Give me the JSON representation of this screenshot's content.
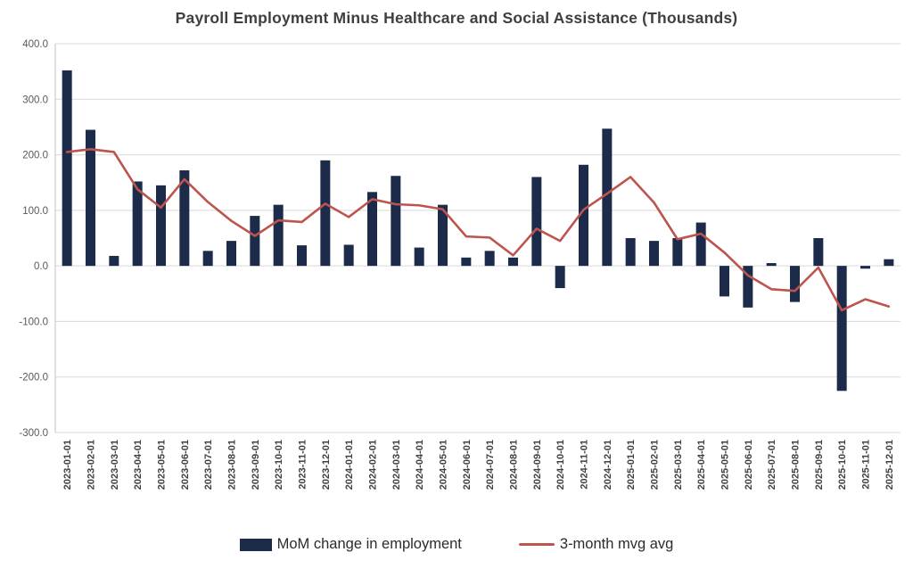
{
  "title": "Payroll Employment Minus Healthcare and Social Assistance (Thousands)",
  "legend": {
    "bar_label": "MoM change in employment",
    "line_label": "3-month mvg avg"
  },
  "colors": {
    "bar": "#1c2b4a",
    "line": "#bd544e",
    "grid": "#d9d9d9",
    "axis": "#bfbfbf",
    "tick_text": "#595959",
    "x_tick_text": "#404040",
    "title_text": "#3f3f3f"
  },
  "chart_data": {
    "type": "bar",
    "title": "Payroll Employment Minus Healthcare and Social Assistance (Thousands)",
    "xlabel": "",
    "ylabel": "",
    "ylim": [
      -300,
      400
    ],
    "y_ticks": [
      400,
      300,
      200,
      100,
      0,
      -100,
      -200,
      -300
    ],
    "grid": true,
    "legend_position": "bottom",
    "categories": [
      "2023-01-01",
      "2023-02-01",
      "2023-03-01",
      "2023-04-01",
      "2023-05-01",
      "2023-06-01",
      "2023-07-01",
      "2023-08-01",
      "2023-09-01",
      "2023-10-01",
      "2023-11-01",
      "2023-12-01",
      "2024-01-01",
      "2024-02-01",
      "2024-03-01",
      "2024-04-01",
      "2024-05-01",
      "2024-06-01",
      "2024-07-01",
      "2024-08-01",
      "2024-09-01",
      "2024-10-01",
      "2024-11-01",
      "2024-12-01",
      "2025-01-01",
      "2025-02-01",
      "2025-03-01",
      "2025-04-01",
      "2025-05-01",
      "2025-06-01",
      "2025-07-01",
      "2025-08-01",
      "2025-09-01",
      "2025-10-01",
      "2025-11-01",
      "2025-12-01"
    ],
    "series": [
      {
        "name": "MoM change in employment",
        "type": "bar",
        "values": [
          352,
          245,
          18,
          152,
          145,
          172,
          27,
          45,
          90,
          110,
          37,
          190,
          38,
          133,
          162,
          33,
          110,
          15,
          27,
          15,
          160,
          -40,
          182,
          247,
          50,
          45,
          50,
          78,
          -55,
          -75,
          5,
          -65,
          50,
          -225,
          -5,
          12
        ]
      },
      {
        "name": "3-month mvg avg",
        "type": "line",
        "values": [
          205,
          210,
          205,
          138,
          105,
          156,
          115,
          81,
          54,
          82,
          79,
          112,
          88,
          120,
          111,
          109,
          102,
          53,
          51,
          19,
          67,
          45,
          101,
          130,
          160,
          114,
          48,
          58,
          24,
          -17,
          -42,
          -45,
          -3,
          -80,
          -60,
          -73
        ]
      }
    ]
  }
}
